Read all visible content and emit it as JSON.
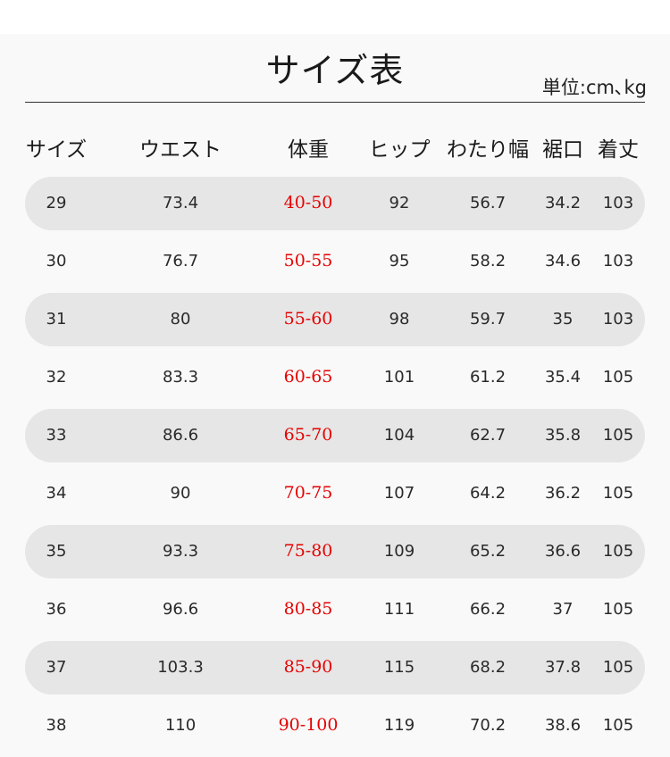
{
  "title": "サイズ表",
  "unit": "単位:cm､kg",
  "headers": [
    "サイズ",
    "ウエスト",
    "体重",
    "ヒップ",
    "わたり幅",
    "裾口",
    "着丈"
  ],
  "colors": {
    "weight": "#e60000",
    "band": "#e6e6e6"
  },
  "rows": [
    {
      "size": "29",
      "waist": "73.4",
      "weight": "40-50",
      "hip": "92",
      "thigh": "56.7",
      "hem": "34.2",
      "length": "103"
    },
    {
      "size": "30",
      "waist": "76.7",
      "weight": "50-55",
      "hip": "95",
      "thigh": "58.2",
      "hem": "34.6",
      "length": "103"
    },
    {
      "size": "31",
      "waist": "80",
      "weight": "55-60",
      "hip": "98",
      "thigh": "59.7",
      "hem": "35",
      "length": "103"
    },
    {
      "size": "32",
      "waist": "83.3",
      "weight": "60-65",
      "hip": "101",
      "thigh": "61.2",
      "hem": "35.4",
      "length": "105"
    },
    {
      "size": "33",
      "waist": "86.6",
      "weight": "65-70",
      "hip": "104",
      "thigh": "62.7",
      "hem": "35.8",
      "length": "105"
    },
    {
      "size": "34",
      "waist": "90",
      "weight": "70-75",
      "hip": "107",
      "thigh": "64.2",
      "hem": "36.2",
      "length": "105"
    },
    {
      "size": "35",
      "waist": "93.3",
      "weight": "75-80",
      "hip": "109",
      "thigh": "65.2",
      "hem": "36.6",
      "length": "105"
    },
    {
      "size": "36",
      "waist": "96.6",
      "weight": "80-85",
      "hip": "111",
      "thigh": "66.2",
      "hem": "37",
      "length": "105"
    },
    {
      "size": "37",
      "waist": "103.3",
      "weight": "85-90",
      "hip": "115",
      "thigh": "68.2",
      "hem": "37.8",
      "length": "105"
    },
    {
      "size": "38",
      "waist": "110",
      "weight": "90-100",
      "hip": "119",
      "thigh": "70.2",
      "hem": "38.6",
      "length": "105"
    }
  ]
}
